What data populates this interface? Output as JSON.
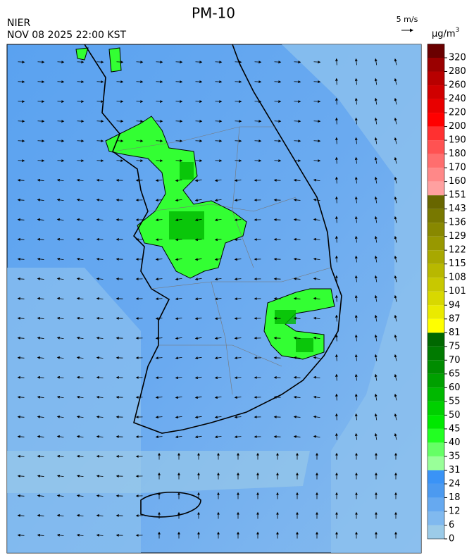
{
  "header": {
    "title": "PM-10",
    "agency": "NIER",
    "timestamp": "NOV 08 2025 22:00 KST"
  },
  "wind_scale": {
    "label": "5 m/s"
  },
  "legend": {
    "unit": "μg/m",
    "unit_superscript": "3",
    "levels": [
      0,
      6,
      12,
      18,
      24,
      31,
      35,
      40,
      45,
      50,
      55,
      60,
      65,
      70,
      75,
      81,
      87,
      94,
      101,
      108,
      115,
      122,
      129,
      136,
      143,
      151,
      160,
      170,
      180,
      190,
      200,
      220,
      240,
      260,
      280,
      320
    ],
    "colors": [
      "#9ccbe8",
      "#80b9ef",
      "#66a9f0",
      "#4c9af0",
      "#3a93f6",
      "#99ff99",
      "#66ff66",
      "#22ff22",
      "#00e800",
      "#00d000",
      "#00b800",
      "#00a000",
      "#008c00",
      "#007a00",
      "#006800",
      "#ffff00",
      "#eaea00",
      "#d8d800",
      "#c8c800",
      "#b8b800",
      "#a8a800",
      "#989800",
      "#888800",
      "#787800",
      "#686600",
      "#ffa0a0",
      "#ff8888",
      "#ff6e6e",
      "#ff5252",
      "#ff3030",
      "#ff0000",
      "#e80000",
      "#d00000",
      "#b80000",
      "#9a0000",
      "#6a0000"
    ]
  }
}
